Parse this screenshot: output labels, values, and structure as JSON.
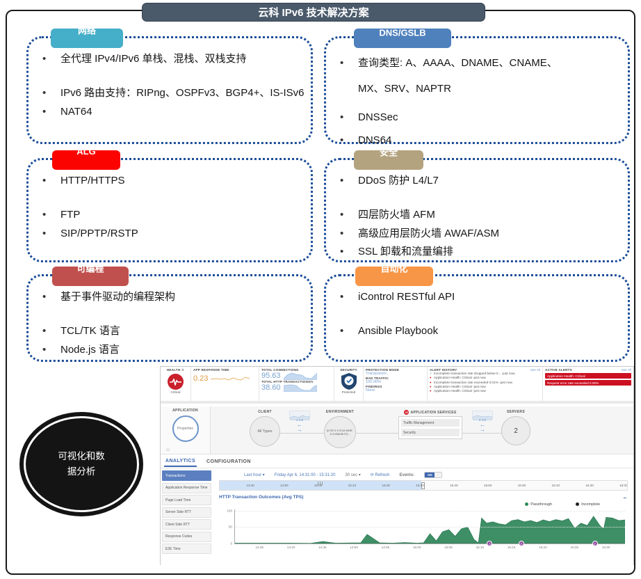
{
  "title": "云科 IPv6 技术解决方案",
  "ellipse_label": "可视化和数据分析",
  "boxes": [
    {
      "tab": "网络",
      "color": "#45aec8",
      "items": [
        "全代理 IPv4/IPv6 单栈、混栈、双栈支持",
        "IPv6 路由支持：RIPng、OSPFv3、BGP4+、IS-ISv6",
        "NAT64"
      ]
    },
    {
      "tab": "DNS/GSLB",
      "color": "#4f81bd",
      "items": [
        "查询类型: A、AAAA、DNAME、CNAME、MX、SRV、NAPTR",
        "DNSSec",
        "DNS64"
      ]
    },
    {
      "tab": "ALG",
      "color": "#fb0300",
      "items": [
        "HTTP/HTTPS",
        "FTP",
        "SIP/PPTP/RSTP"
      ]
    },
    {
      "tab": "安全",
      "color": "#b3a37f",
      "items": [
        "DDoS 防护 L4/L7",
        "四层防火墙 AFM",
        "高级应用层防火墙 AWAF/ASM",
        "SSL 卸载和流量编排"
      ]
    },
    {
      "tab": "可编程",
      "color": "#c0504d",
      "items": [
        "基于事件驱动的编程架构",
        "TCL/TK 语言",
        "Node.js 语言"
      ]
    },
    {
      "tab": "自动化",
      "color": "#f79646",
      "items": [
        "iControl RESTful API",
        "Ansible Playbook"
      ]
    }
  ],
  "dashboard": {
    "health": {
      "label": "HEALTH",
      "status": "Critical"
    },
    "app_response_time": {
      "label": "APP RESPONSE TIME",
      "value": "0.23"
    },
    "total_connections": {
      "label": "TOTAL CONNECTIONS",
      "value": "95.63"
    },
    "total_http": {
      "label": "TOTAL HTTP TRANSACTIONS/s",
      "value": "38.60"
    },
    "security": {
      "label": "SECURITY",
      "status": "Protected"
    },
    "protection": {
      "mode_label": "PROTECTION MODE",
      "mode": "Transparent",
      "bad_label": "BAD TRAFFIC",
      "bad": "100.00%",
      "findings_label": "FINDINGS",
      "findings": "None"
    },
    "alert_history": {
      "label": "ALERT HISTORY",
      "see_all": "See All",
      "items": [
        {
          "icon": "check",
          "text": "Incomplete transaction rate dropped below 0... -just now"
        },
        {
          "icon": "diamond",
          "text": "Application Health: Critical -just now"
        },
        {
          "icon": "diamond",
          "text": "Incomplete transaction rate exceeded 0.01% -just now"
        },
        {
          "icon": "diamond",
          "text": "Application Health: Critical -just now"
        },
        {
          "icon": "diamond",
          "text": "Application Health: Critical -just now"
        }
      ]
    },
    "active_alerts": {
      "label": "ACTIVE ALERTS",
      "see_all": "See All",
      "items": [
        "Application Health: Critical",
        "Request error rate exceeded 0.05%"
      ]
    },
    "topology": {
      "application_label": "APPLICATION",
      "application_node": "Properties",
      "client_label": "CLIENT",
      "client_node": "All Types",
      "link1_latency": "1 ms",
      "environment_label": "ENVIRONMENT",
      "environment_node": "ip-10-1-1-9.us-west-2.compute.int...",
      "services_label": "APPLICATION SERVICES",
      "services": [
        "Traffic Management",
        "Security"
      ],
      "link2_latency": "2 ms",
      "servers_label": "SERVERS",
      "servers_count": "2"
    },
    "tabs": {
      "analytics": "ANALYTICS",
      "configuration": "CONFIGURATION"
    },
    "sidebar": [
      "Transactions",
      "Application Response Time",
      "Page Load Time",
      "Server Side RTT",
      "Client Side RTT",
      "Response Codes",
      "E2E Time"
    ],
    "controls": {
      "range": "Last hour ▾",
      "date": "Friday Apr 6, 14:31:00 - 15:31:20",
      "interval": "30 sec ▾",
      "refresh": "⟳ Refresh",
      "events_label": "Events:",
      "events_state": "ON"
    },
    "timeline": {
      "ticks": [
        "14:40",
        "14:50",
        "15:00",
        "15:10",
        "15:20",
        "15:30",
        "15:40",
        "15:50",
        "16:00",
        "16:10",
        "16:20",
        "16:30"
      ]
    }
  },
  "chart_data": {
    "type": "area",
    "title": "HTTP Transaction Outcomes (Avg TPS)",
    "legend": [
      "Passthrough",
      "Incomplete"
    ],
    "legend_colors": [
      "#2d8a5c",
      "#222222"
    ],
    "ylim": [
      0,
      100
    ],
    "ytick_labels": [
      "100",
      "50",
      "0"
    ],
    "x_start": "14:31",
    "x_end": "15:33",
    "x_span_minutes": 62,
    "xticks": [
      "14:35",
      "14:40",
      "14:45",
      "14:50",
      "14:55",
      "15:00",
      "15:05",
      "15:10",
      "15:15",
      "15:20",
      "15:25",
      "15:30"
    ],
    "series": [
      {
        "name": "Passthrough",
        "color": "#3f8f66",
        "points": [
          [
            0,
            1
          ],
          [
            4,
            1
          ],
          [
            9,
            1
          ],
          [
            12,
            0.5
          ],
          [
            14,
            6
          ],
          [
            16,
            1
          ],
          [
            20,
            2
          ],
          [
            21,
            28
          ],
          [
            23,
            2
          ],
          [
            25,
            1
          ],
          [
            27,
            3
          ],
          [
            29,
            1
          ],
          [
            30,
            2
          ],
          [
            31,
            30
          ],
          [
            32,
            8
          ],
          [
            33,
            36
          ],
          [
            34,
            42
          ],
          [
            35,
            22
          ],
          [
            36,
            45
          ],
          [
            37,
            50
          ],
          [
            38,
            12
          ],
          [
            38.7,
            2
          ],
          [
            39.2,
            78
          ],
          [
            40,
            62
          ],
          [
            41,
            66
          ],
          [
            42,
            60
          ],
          [
            43,
            57
          ],
          [
            44,
            70
          ],
          [
            45,
            73
          ],
          [
            46,
            66
          ],
          [
            47,
            70
          ],
          [
            48,
            64
          ],
          [
            49,
            72
          ],
          [
            50,
            67
          ],
          [
            51,
            73
          ],
          [
            52,
            69
          ],
          [
            53,
            76
          ],
          [
            54,
            46
          ],
          [
            55,
            62
          ],
          [
            56,
            55
          ],
          [
            57,
            83
          ],
          [
            58,
            55
          ],
          [
            58.6,
            44
          ],
          [
            59,
            80
          ],
          [
            60,
            78
          ],
          [
            61,
            70
          ],
          [
            62,
            72
          ]
        ]
      }
    ],
    "events": [
      [
        40.5,
        "2"
      ],
      [
        45.5,
        "3"
      ],
      [
        57.2,
        "2"
      ]
    ]
  }
}
